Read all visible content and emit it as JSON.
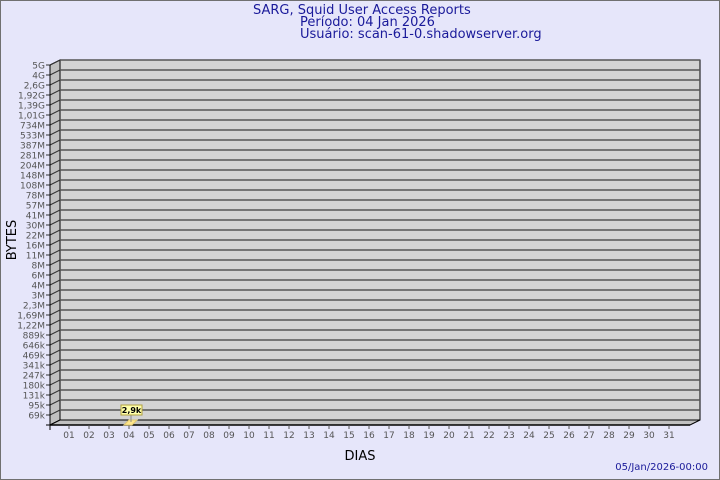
{
  "header": {
    "title": "SARG, Squid User Access Reports",
    "period": "Período: 04 Jan 2026",
    "user": "Usuário: scan-61-0.shadowserver.org"
  },
  "footer": {
    "timestamp": "05/Jan/2026-00:00"
  },
  "colors": {
    "background": "#e6e6fa",
    "plot": "#d3d3d3",
    "text": "#1a1a9a",
    "bar": "#ffe68c"
  },
  "chart_data": {
    "type": "bar",
    "xlabel": "DIAS",
    "ylabel": "BYTES",
    "y_scale": "log",
    "y_ticks": [
      "5G",
      "4G",
      "2,6G",
      "1,92G",
      "1,39G",
      "1,01G",
      "734M",
      "533M",
      "387M",
      "281M",
      "204M",
      "148M",
      "108M",
      "78M",
      "57M",
      "41M",
      "30M",
      "22M",
      "16M",
      "11M",
      "8M",
      "6M",
      "4M",
      "3M",
      "2,3M",
      "1,69M",
      "1,22M",
      "889k",
      "646k",
      "469k",
      "341k",
      "247k",
      "180k",
      "131k",
      "95k",
      "69k"
    ],
    "categories": [
      "01",
      "02",
      "03",
      "04",
      "05",
      "06",
      "07",
      "08",
      "09",
      "10",
      "11",
      "12",
      "13",
      "14",
      "15",
      "16",
      "17",
      "18",
      "19",
      "20",
      "21",
      "22",
      "23",
      "24",
      "25",
      "26",
      "27",
      "28",
      "29",
      "30",
      "31"
    ],
    "series": [
      {
        "points": [
          {
            "x": "04",
            "value": 2900,
            "label": "2,9k"
          }
        ]
      }
    ],
    "grid": true
  }
}
